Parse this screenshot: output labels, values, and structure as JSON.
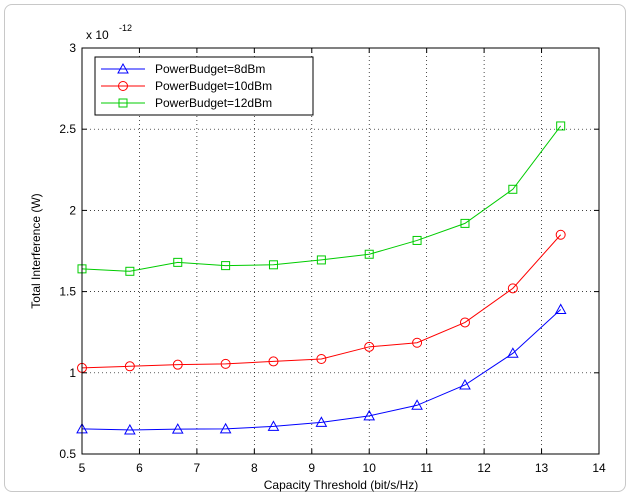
{
  "chart_data": {
    "type": "line",
    "title": "",
    "xlabel": "Capacity Threshold (bit/s/Hz)",
    "ylabel": "Total Interference (W)",
    "y_exponent_base": "x 10",
    "y_exponent_power": "-12",
    "xlim": [
      5,
      14
    ],
    "ylim": [
      0.5,
      3
    ],
    "xticks": [
      5,
      6,
      7,
      8,
      9,
      10,
      11,
      12,
      13,
      14
    ],
    "xtick_labels": [
      "5",
      "6",
      "7",
      "8",
      "9",
      "10",
      "11",
      "12",
      "13",
      "14"
    ],
    "yticks": [
      0.5,
      1,
      1.5,
      2,
      2.5,
      3
    ],
    "ytick_labels": [
      "0.5",
      "1",
      "1.5",
      "2",
      "2.5",
      "3"
    ],
    "grid": true,
    "legend_position": "top-left",
    "x": [
      5.0,
      5.833,
      6.667,
      7.5,
      8.333,
      9.167,
      10.0,
      10.833,
      11.667,
      12.5,
      13.333
    ],
    "series": [
      {
        "name": "PowerBudget=8dBm",
        "color": "#0000ff",
        "marker": "triangle",
        "values": [
          0.655,
          0.648,
          0.653,
          0.655,
          0.67,
          0.695,
          0.735,
          0.8,
          0.925,
          1.12,
          1.39
        ]
      },
      {
        "name": "PowerBudget=10dBm",
        "color": "#ff0000",
        "marker": "circle",
        "values": [
          1.03,
          1.04,
          1.05,
          1.055,
          1.07,
          1.085,
          1.16,
          1.185,
          1.31,
          1.52,
          1.85
        ]
      },
      {
        "name": "PowerBudget=12dBm",
        "color": "#00cc00",
        "marker": "square",
        "values": [
          1.64,
          1.625,
          1.68,
          1.66,
          1.665,
          1.695,
          1.73,
          1.815,
          1.92,
          2.13,
          2.52
        ]
      }
    ]
  }
}
